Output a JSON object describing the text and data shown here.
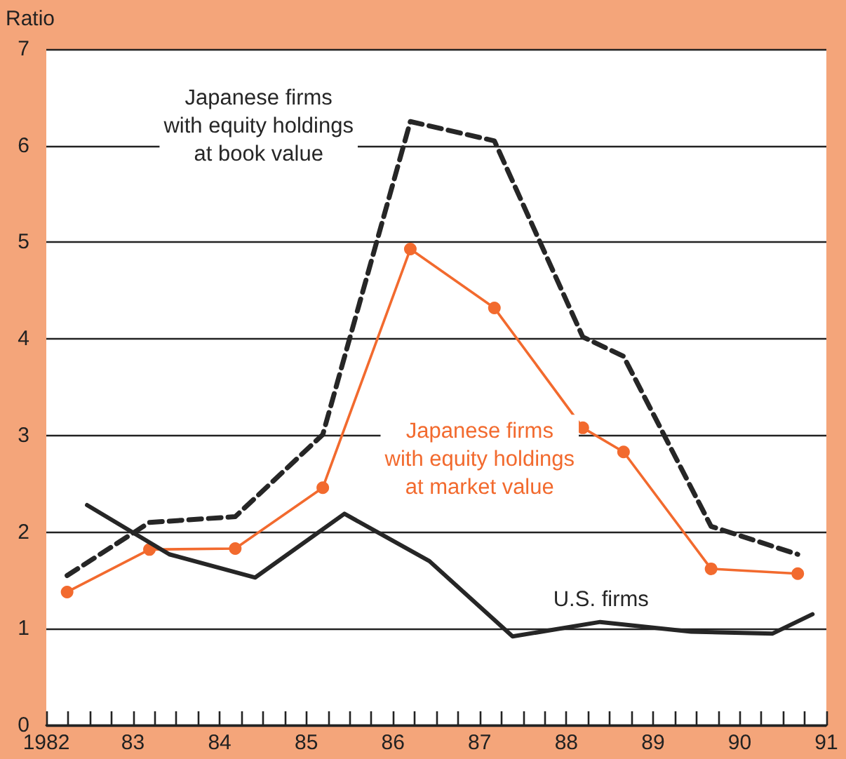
{
  "chart_data": {
    "type": "line",
    "ylabel": "Ratio",
    "xlim": [
      1982,
      1991
    ],
    "ylim": [
      0,
      7
    ],
    "yticks": [
      0,
      1,
      2,
      3,
      4,
      5,
      6,
      7
    ],
    "xticks": [
      {
        "value": 1982,
        "label": "1982"
      },
      {
        "value": 1982.25,
        "label": null
      },
      {
        "value": 1982.5,
        "label": null
      },
      {
        "value": 1982.75,
        "label": null
      },
      {
        "value": 1983,
        "label": "83"
      },
      {
        "value": 1983.25,
        "label": null
      },
      {
        "value": 1983.5,
        "label": null
      },
      {
        "value": 1983.75,
        "label": null
      },
      {
        "value": 1984,
        "label": "84"
      },
      {
        "value": 1984.25,
        "label": null
      },
      {
        "value": 1984.5,
        "label": null
      },
      {
        "value": 1984.75,
        "label": null
      },
      {
        "value": 1985,
        "label": "85"
      },
      {
        "value": 1985.25,
        "label": null
      },
      {
        "value": 1985.5,
        "label": null
      },
      {
        "value": 1985.75,
        "label": null
      },
      {
        "value": 1986,
        "label": "86"
      },
      {
        "value": 1986.25,
        "label": null
      },
      {
        "value": 1986.5,
        "label": null
      },
      {
        "value": 1986.75,
        "label": null
      },
      {
        "value": 1987,
        "label": "87"
      },
      {
        "value": 1987.25,
        "label": null
      },
      {
        "value": 1987.5,
        "label": null
      },
      {
        "value": 1987.75,
        "label": null
      },
      {
        "value": 1988,
        "label": "88"
      },
      {
        "value": 1988.25,
        "label": null
      },
      {
        "value": 1988.5,
        "label": null
      },
      {
        "value": 1988.75,
        "label": null
      },
      {
        "value": 1989,
        "label": "89"
      },
      {
        "value": 1989.25,
        "label": null
      },
      {
        "value": 1989.5,
        "label": null
      },
      {
        "value": 1989.75,
        "label": null
      },
      {
        "value": 1990,
        "label": "90"
      },
      {
        "value": 1990.25,
        "label": null
      },
      {
        "value": 1990.5,
        "label": null
      },
      {
        "value": 1990.75,
        "label": null
      },
      {
        "value": 1991,
        "label": "91"
      }
    ],
    "grid": "y",
    "legend": false,
    "series": [
      {
        "name": "Japanese firms with equity holdings at book value",
        "color": "#262626",
        "line_style": "dashed",
        "marker": "none",
        "x": [
          1982.24,
          1983.19,
          1984.18,
          1985.19,
          1986.2,
          1987.17,
          1988.19,
          1988.66,
          1989.67,
          1990.67
        ],
        "values": [
          1.55,
          2.1,
          2.16,
          3.01,
          6.25,
          6.05,
          4.02,
          3.82,
          2.06,
          1.77
        ]
      },
      {
        "name": "Japanese firms with equity holdings at market value",
        "color": "#f26a2e",
        "line_style": "solid",
        "marker": "circle",
        "x": [
          1982.24,
          1983.19,
          1984.18,
          1985.19,
          1986.2,
          1987.17,
          1988.19,
          1988.66,
          1989.67,
          1990.67
        ],
        "values": [
          1.38,
          1.82,
          1.83,
          2.46,
          4.93,
          4.32,
          3.08,
          2.83,
          1.62,
          1.57
        ]
      },
      {
        "name": "U.S. firms",
        "color": "#262626",
        "line_style": "solid",
        "marker": "none",
        "x": [
          1982.47,
          1983.42,
          1984.41,
          1985.44,
          1986.42,
          1987.38,
          1988.39,
          1989.44,
          1990.38,
          1990.84
        ],
        "values": [
          2.28,
          1.77,
          1.53,
          2.19,
          1.7,
          0.92,
          1.07,
          0.97,
          0.95,
          1.15
        ]
      }
    ]
  }
}
